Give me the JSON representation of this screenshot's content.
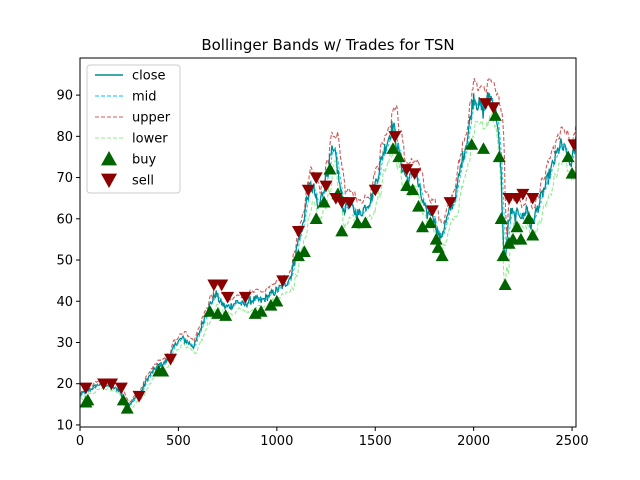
{
  "chart_data": {
    "type": "line",
    "title": "Bollinger Bands w/ Trades for TSN",
    "xlabel": "",
    "ylabel": "",
    "xlim": [
      0,
      2520
    ],
    "ylim": [
      9.5,
      99
    ],
    "x_ticks": [
      0,
      500,
      1000,
      1500,
      2000,
      2500
    ],
    "x_tick_labels": [
      "0",
      "500",
      "1000",
      "1500",
      "2000",
      "2500"
    ],
    "y_ticks": [
      10,
      20,
      30,
      40,
      50,
      60,
      70,
      80,
      90
    ],
    "y_tick_labels": [
      "10",
      "20",
      "30",
      "40",
      "50",
      "60",
      "70",
      "80",
      "90"
    ],
    "grid": false,
    "legend_position": "top-left",
    "close_path": [
      [
        0,
        17
      ],
      [
        20,
        18
      ],
      [
        50,
        18.5
      ],
      [
        80,
        19.5
      ],
      [
        110,
        20
      ],
      [
        140,
        19.5
      ],
      [
        170,
        19
      ],
      [
        200,
        18.5
      ],
      [
        230,
        15
      ],
      [
        250,
        15
      ],
      [
        280,
        16.5
      ],
      [
        310,
        18
      ],
      [
        340,
        21
      ],
      [
        370,
        23
      ],
      [
        400,
        24.5
      ],
      [
        430,
        25
      ],
      [
        460,
        27
      ],
      [
        490,
        30
      ],
      [
        520,
        31
      ],
      [
        550,
        30
      ],
      [
        580,
        29
      ],
      [
        610,
        33
      ],
      [
        640,
        37
      ],
      [
        670,
        40
      ],
      [
        690,
        42
      ],
      [
        710,
        40
      ],
      [
        740,
        38.5
      ],
      [
        770,
        39
      ],
      [
        800,
        40
      ],
      [
        830,
        39
      ],
      [
        860,
        40
      ],
      [
        890,
        40.5
      ],
      [
        920,
        40
      ],
      [
        950,
        41
      ],
      [
        980,
        42
      ],
      [
        1010,
        43
      ],
      [
        1040,
        44
      ],
      [
        1070,
        46
      ],
      [
        1090,
        50
      ],
      [
        1110,
        55
      ],
      [
        1130,
        58
      ],
      [
        1150,
        64
      ],
      [
        1170,
        68
      ],
      [
        1190,
        67
      ],
      [
        1210,
        62
      ],
      [
        1230,
        66
      ],
      [
        1260,
        72
      ],
      [
        1280,
        76
      ],
      [
        1300,
        75
      ],
      [
        1320,
        68
      ],
      [
        1340,
        62
      ],
      [
        1360,
        64
      ],
      [
        1390,
        62
      ],
      [
        1420,
        61
      ],
      [
        1450,
        63
      ],
      [
        1480,
        65
      ],
      [
        1510,
        70
      ],
      [
        1540,
        76
      ],
      [
        1570,
        80
      ],
      [
        1590,
        83
      ],
      [
        1610,
        78
      ],
      [
        1640,
        72
      ],
      [
        1670,
        69
      ],
      [
        1700,
        72
      ],
      [
        1730,
        66
      ],
      [
        1760,
        61
      ],
      [
        1790,
        62
      ],
      [
        1810,
        58
      ],
      [
        1830,
        55
      ],
      [
        1850,
        58
      ],
      [
        1880,
        62
      ],
      [
        1910,
        66
      ],
      [
        1940,
        74
      ],
      [
        1970,
        80
      ],
      [
        2000,
        90
      ],
      [
        2020,
        88
      ],
      [
        2050,
        86
      ],
      [
        2080,
        90
      ],
      [
        2100,
        88
      ],
      [
        2120,
        84
      ],
      [
        2140,
        70
      ],
      [
        2150,
        55
      ],
      [
        2160,
        50
      ],
      [
        2175,
        58
      ],
      [
        2190,
        62
      ],
      [
        2210,
        60
      ],
      [
        2230,
        62
      ],
      [
        2250,
        60
      ],
      [
        2270,
        63
      ],
      [
        2290,
        58
      ],
      [
        2320,
        62
      ],
      [
        2350,
        66
      ],
      [
        2380,
        70
      ],
      [
        2410,
        74
      ],
      [
        2440,
        78
      ],
      [
        2470,
        76
      ],
      [
        2490,
        73
      ],
      [
        2510,
        76
      ],
      [
        2520,
        79
      ]
    ],
    "series": [
      {
        "name": "close",
        "color": "#008B8B",
        "style": "solid"
      },
      {
        "name": "mid",
        "color": "#00BFFF",
        "style": "dashed"
      },
      {
        "name": "upper",
        "color": "#CD5C5C",
        "style": "dashed"
      },
      {
        "name": "lower",
        "color": "#90EE90",
        "style": "dashed"
      },
      {
        "name": "buy",
        "color": "#006400",
        "style": "triangle-up"
      },
      {
        "name": "sell",
        "color": "#8B0000",
        "style": "triangle-down"
      }
    ],
    "buy": [
      [
        30,
        15.5
      ],
      [
        40,
        16
      ],
      [
        220,
        16
      ],
      [
        240,
        14
      ],
      [
        400,
        23
      ],
      [
        420,
        23
      ],
      [
        660,
        37.5
      ],
      [
        700,
        37
      ],
      [
        740,
        36.5
      ],
      [
        890,
        37
      ],
      [
        920,
        37.5
      ],
      [
        970,
        39
      ],
      [
        1000,
        40
      ],
      [
        1110,
        51
      ],
      [
        1140,
        52
      ],
      [
        1200,
        60
      ],
      [
        1240,
        64
      ],
      [
        1270,
        72
      ],
      [
        1310,
        66
      ],
      [
        1330,
        57
      ],
      [
        1410,
        59
      ],
      [
        1450,
        59
      ],
      [
        1590,
        77
      ],
      [
        1620,
        75
      ],
      [
        1660,
        68
      ],
      [
        1690,
        67
      ],
      [
        1720,
        63
      ],
      [
        1740,
        58
      ],
      [
        1780,
        59
      ],
      [
        1810,
        55
      ],
      [
        1820,
        53
      ],
      [
        1840,
        51
      ],
      [
        1990,
        78
      ],
      [
        2050,
        77
      ],
      [
        2110,
        85
      ],
      [
        2130,
        75
      ],
      [
        2140,
        60
      ],
      [
        2150,
        51
      ],
      [
        2160,
        44
      ],
      [
        2180,
        54
      ],
      [
        2200,
        55
      ],
      [
        2220,
        58
      ],
      [
        2240,
        55
      ],
      [
        2280,
        60
      ],
      [
        2300,
        56
      ],
      [
        2480,
        75
      ],
      [
        2500,
        71
      ]
    ],
    "sell": [
      [
        30,
        19
      ],
      [
        120,
        20
      ],
      [
        160,
        20
      ],
      [
        210,
        19
      ],
      [
        300,
        17
      ],
      [
        460,
        26
      ],
      [
        680,
        44
      ],
      [
        720,
        44
      ],
      [
        750,
        41
      ],
      [
        840,
        41
      ],
      [
        1030,
        45
      ],
      [
        1110,
        57
      ],
      [
        1160,
        67
      ],
      [
        1200,
        70
      ],
      [
        1250,
        68
      ],
      [
        1300,
        65
      ],
      [
        1330,
        64
      ],
      [
        1370,
        64
      ],
      [
        1500,
        67
      ],
      [
        1600,
        80
      ],
      [
        1660,
        72
      ],
      [
        1700,
        71
      ],
      [
        1790,
        62
      ],
      [
        1880,
        64
      ],
      [
        2060,
        88
      ],
      [
        2100,
        87
      ],
      [
        2180,
        65
      ],
      [
        2220,
        65
      ],
      [
        2250,
        66
      ],
      [
        2300,
        65
      ],
      [
        2510,
        78
      ]
    ]
  }
}
